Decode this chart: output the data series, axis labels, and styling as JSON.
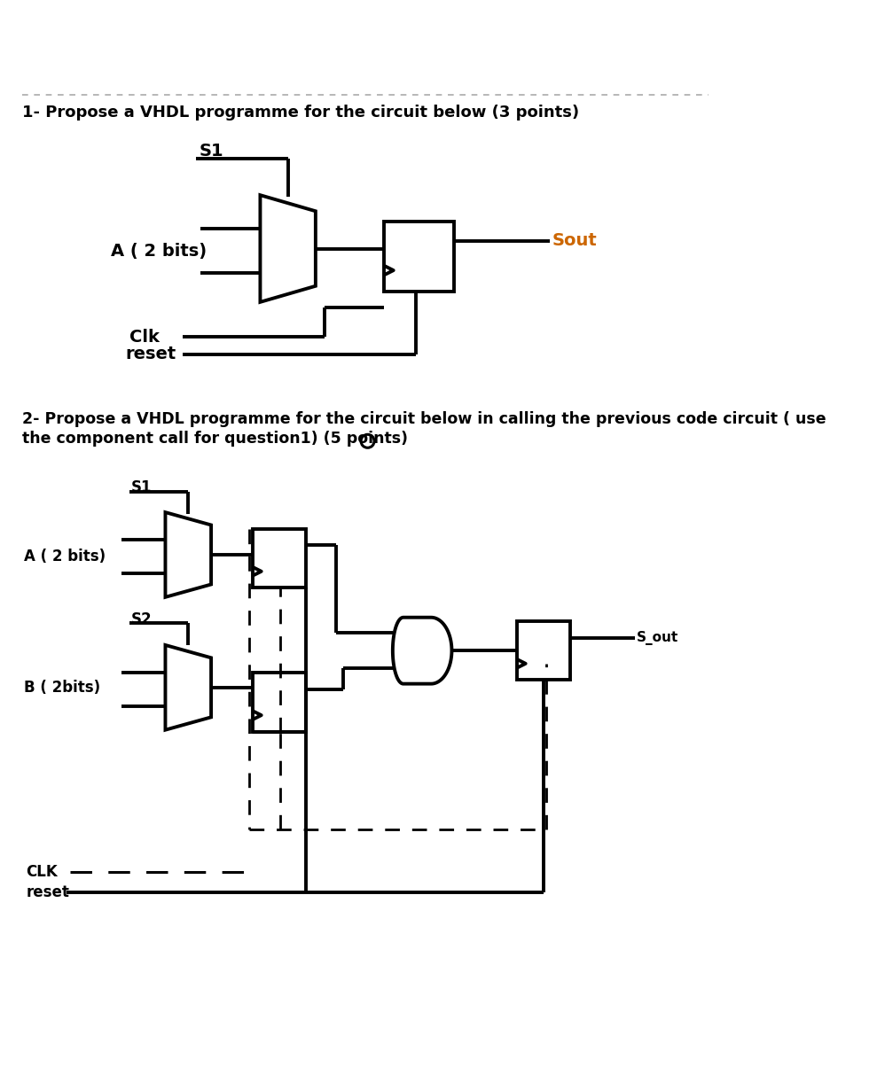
{
  "title1": "1- Propose a VHDL programme for the circuit below (3 points)",
  "title2_line1": "2- Propose a VHDL programme for the circuit below in calling the previous code circuit ( use",
  "title2_line2": "the component call for question1) (5 points)",
  "bg_color": "#ffffff",
  "line_color": "#000000",
  "text_color": "#000000",
  "orange_color": "#cc6600",
  "label_A1": "A ( 2 bits)",
  "label_Clk1": "Clk",
  "label_reset1": "reset",
  "label_S1_1": "S1",
  "label_Sout1": "Sout",
  "label_S1_2": "S1",
  "label_S2_2": "S2",
  "label_A2": "A ( 2 bits)",
  "label_B2": "B ( 2bits)",
  "label_CLK2": "CLK",
  "label_reset2": "reset",
  "label_Sout2": "S_out",
  "title1_fontsize": 13,
  "title2_fontsize": 12.5,
  "label_fontsize1": 14,
  "label_fontsize2": 13
}
